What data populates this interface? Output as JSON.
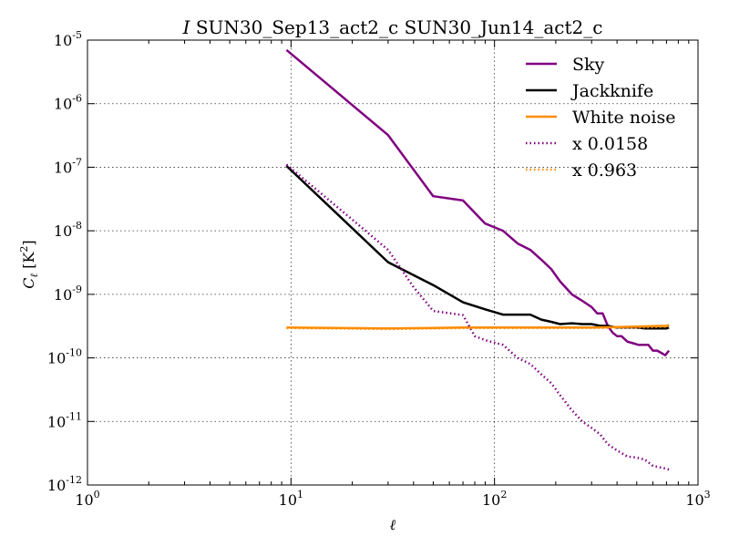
{
  "chart_data": {
    "type": "line",
    "title": {
      "italic": "I",
      "rest": " SUN30_Sep13_act2_c SUN30_Jun14_act2_c"
    },
    "xlabel": "ℓ",
    "ylabel": {
      "main": "C",
      "sub": "ℓ",
      "unit_open": " [K",
      "unit_sup": "2",
      "unit_close": "]"
    },
    "xscale": "log",
    "yscale": "log",
    "xlim": [
      1,
      1000
    ],
    "ylim": [
      1e-12,
      1e-05
    ],
    "x_ticks": [
      {
        "value": 1,
        "base": "10",
        "exp": "0"
      },
      {
        "value": 10,
        "base": "10",
        "exp": "1"
      },
      {
        "value": 100,
        "base": "10",
        "exp": "2"
      },
      {
        "value": 1000,
        "base": "10",
        "exp": "3"
      }
    ],
    "y_ticks": [
      {
        "value": 1e-12,
        "base": "10",
        "exp": "-12"
      },
      {
        "value": 1e-11,
        "base": "10",
        "exp": "-11"
      },
      {
        "value": 1e-10,
        "base": "10",
        "exp": "-10"
      },
      {
        "value": 1e-09,
        "base": "10",
        "exp": "-9"
      },
      {
        "value": 1e-08,
        "base": "10",
        "exp": "-8"
      },
      {
        "value": 1e-07,
        "base": "10",
        "exp": "-7"
      },
      {
        "value": 1e-06,
        "base": "10",
        "exp": "-6"
      },
      {
        "value": 1e-05,
        "base": "10",
        "exp": "-5"
      }
    ],
    "grid": true,
    "legend_position": "top-right",
    "series": [
      {
        "name": "Sky",
        "color": "#800080",
        "style": "solid",
        "x": [
          9.5,
          30,
          50,
          70,
          90,
          110,
          130,
          150,
          170,
          190,
          210,
          240,
          270,
          300,
          320,
          340,
          360,
          380,
          400,
          420,
          450,
          480,
          510,
          540,
          570,
          600,
          630,
          660,
          690,
          720
        ],
        "y": [
          7e-06,
          3.2e-07,
          3.5e-08,
          3e-08,
          1.3e-08,
          1e-08,
          6.3e-09,
          5e-09,
          3.5e-09,
          2.5e-09,
          1.6e-09,
          1e-09,
          7.9e-10,
          6.3e-10,
          5e-10,
          5e-10,
          3.2e-10,
          2.5e-10,
          2.2e-10,
          2.2e-10,
          1.8e-10,
          1.7e-10,
          1.6e-10,
          1.6e-10,
          1.6e-10,
          1.3e-10,
          1.3e-10,
          1.2e-10,
          1.1e-10,
          1.3e-10
        ]
      },
      {
        "name": "Jackknife",
        "color": "#000000",
        "style": "solid",
        "x": [
          9.5,
          30,
          50,
          70,
          90,
          110,
          130,
          150,
          170,
          190,
          210,
          240,
          270,
          300,
          330,
          360,
          400,
          450,
          500,
          550,
          600,
          650,
          700,
          720
        ],
        "y": [
          1.05e-07,
          3.2e-09,
          1.4e-09,
          7.5e-10,
          5.8e-10,
          4.8e-10,
          4.8e-10,
          4.8e-10,
          4e-10,
          3.7e-10,
          3.4e-10,
          3.5e-10,
          3.4e-10,
          3.4e-10,
          3.2e-10,
          3.2e-10,
          3e-10,
          3e-10,
          3e-10,
          2.9e-10,
          2.9e-10,
          2.9e-10,
          2.9e-10,
          3e-10
        ]
      },
      {
        "name": "White noise",
        "color": "#ff8c00",
        "style": "solid",
        "x": [
          9.5,
          30,
          50,
          70,
          100,
          150,
          200,
          300,
          400,
          500,
          600,
          700,
          720
        ],
        "y": [
          3e-10,
          2.9e-10,
          2.95e-10,
          3e-10,
          3e-10,
          3e-10,
          3e-10,
          3e-10,
          3.05e-10,
          3.1e-10,
          3.15e-10,
          3.2e-10,
          3.3e-10
        ]
      },
      {
        "name": "x 0.0158",
        "color": "#800080",
        "style": "dotted",
        "x": [
          9.5,
          20,
          30,
          40,
          50,
          70,
          80,
          90,
          110,
          130,
          150,
          170,
          190,
          210,
          240,
          270,
          300,
          330,
          360,
          400,
          450,
          500,
          550,
          600,
          650,
          700,
          720
        ],
        "y": [
          1.1e-07,
          1.5e-08,
          5e-09,
          1.3e-09,
          5.5e-10,
          4.7e-10,
          2.2e-10,
          1.9e-10,
          1.6e-10,
          1e-10,
          8e-11,
          5.5e-11,
          4e-11,
          2.6e-11,
          1.5e-11,
          1e-11,
          7.9e-12,
          6.3e-12,
          4.4e-12,
          3.5e-12,
          2.8e-12,
          2.7e-12,
          2.5e-12,
          2e-12,
          1.9e-12,
          1.8e-12,
          1.75e-12
        ]
      },
      {
        "name": "x 0.963",
        "color": "#ff8c00",
        "style": "dotted",
        "x": [
          9.5,
          30,
          50,
          70,
          100,
          150,
          200,
          300,
          400,
          500,
          600,
          700,
          720
        ],
        "y": [
          2.95e-10,
          2.85e-10,
          2.9e-10,
          2.95e-10,
          2.95e-10,
          2.95e-10,
          2.95e-10,
          2.95e-10,
          3e-10,
          3e-10,
          3.05e-10,
          3.1e-10,
          3.2e-10
        ]
      }
    ]
  }
}
